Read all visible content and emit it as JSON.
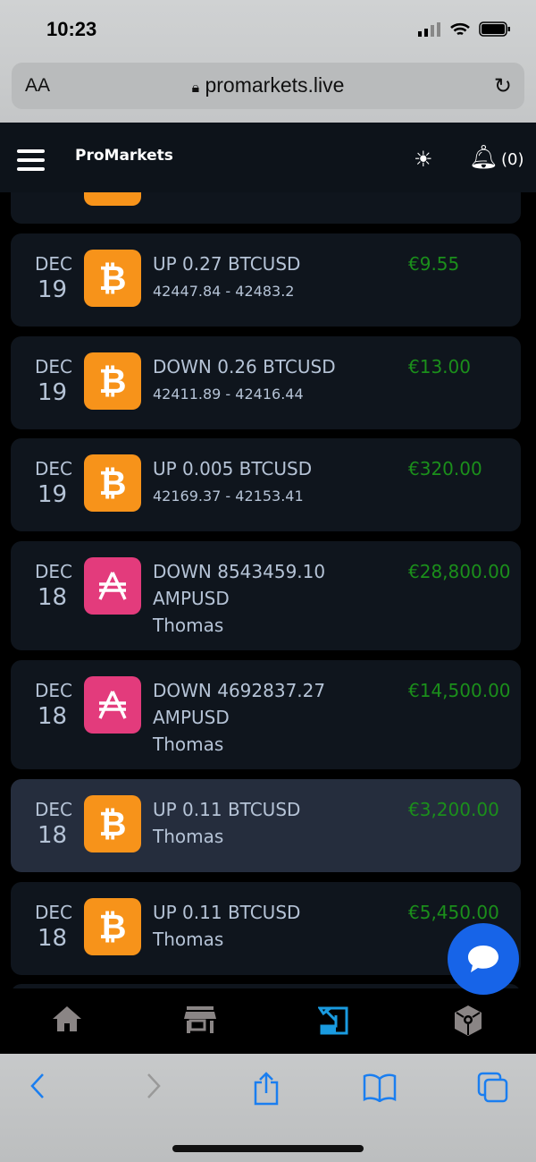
{
  "status": {
    "time": "10:23"
  },
  "browser": {
    "text_size": "AA",
    "url": "promarkets.live"
  },
  "header": {
    "title": "ProMarkets",
    "notif_count": "(0)"
  },
  "trades": [
    {
      "month": "DEC",
      "day": "19",
      "coin": "btc",
      "line1": "UP 0.27 BTCUSD",
      "line2": "42447.84 - 42483.2",
      "amount": "€9.55"
    },
    {
      "month": "DEC",
      "day": "19",
      "coin": "btc",
      "line1": "DOWN 0.26 BTCUSD",
      "line2": "42411.89 - 42416.44",
      "amount": "€13.00"
    },
    {
      "month": "DEC",
      "day": "19",
      "coin": "btc",
      "line1": "UP 0.005 BTCUSD",
      "line2": "42169.37 - 42153.41",
      "amount": "€320.00"
    },
    {
      "month": "DEC",
      "day": "18",
      "coin": "amp",
      "line1": "DOWN 8543459.10",
      "line2": "AMPUSD",
      "line3": "Thomas",
      "amount": "€28,800.00"
    },
    {
      "month": "DEC",
      "day": "18",
      "coin": "amp",
      "line1": "DOWN 4692837.27",
      "line2": "AMPUSD",
      "line3": "Thomas",
      "amount": "€14,500.00"
    },
    {
      "month": "DEC",
      "day": "18",
      "coin": "btc",
      "line1": "UP 0.11 BTCUSD",
      "line2": "Thomas",
      "amount": "€3,200.00",
      "highlighted": true
    },
    {
      "month": "DEC",
      "day": "18",
      "coin": "btc",
      "line1": "UP 0.11 BTCUSD",
      "line2": "Thomas",
      "amount": "€5,450.00"
    }
  ],
  "colors": {
    "btc": "#f7931a",
    "amp": "#e33b7c",
    "amount": "#1b8f1b",
    "active_nav": "#1a9be0"
  },
  "bottom_nav": [
    "home-icon",
    "store-icon",
    "trades-icon",
    "box-icon"
  ]
}
